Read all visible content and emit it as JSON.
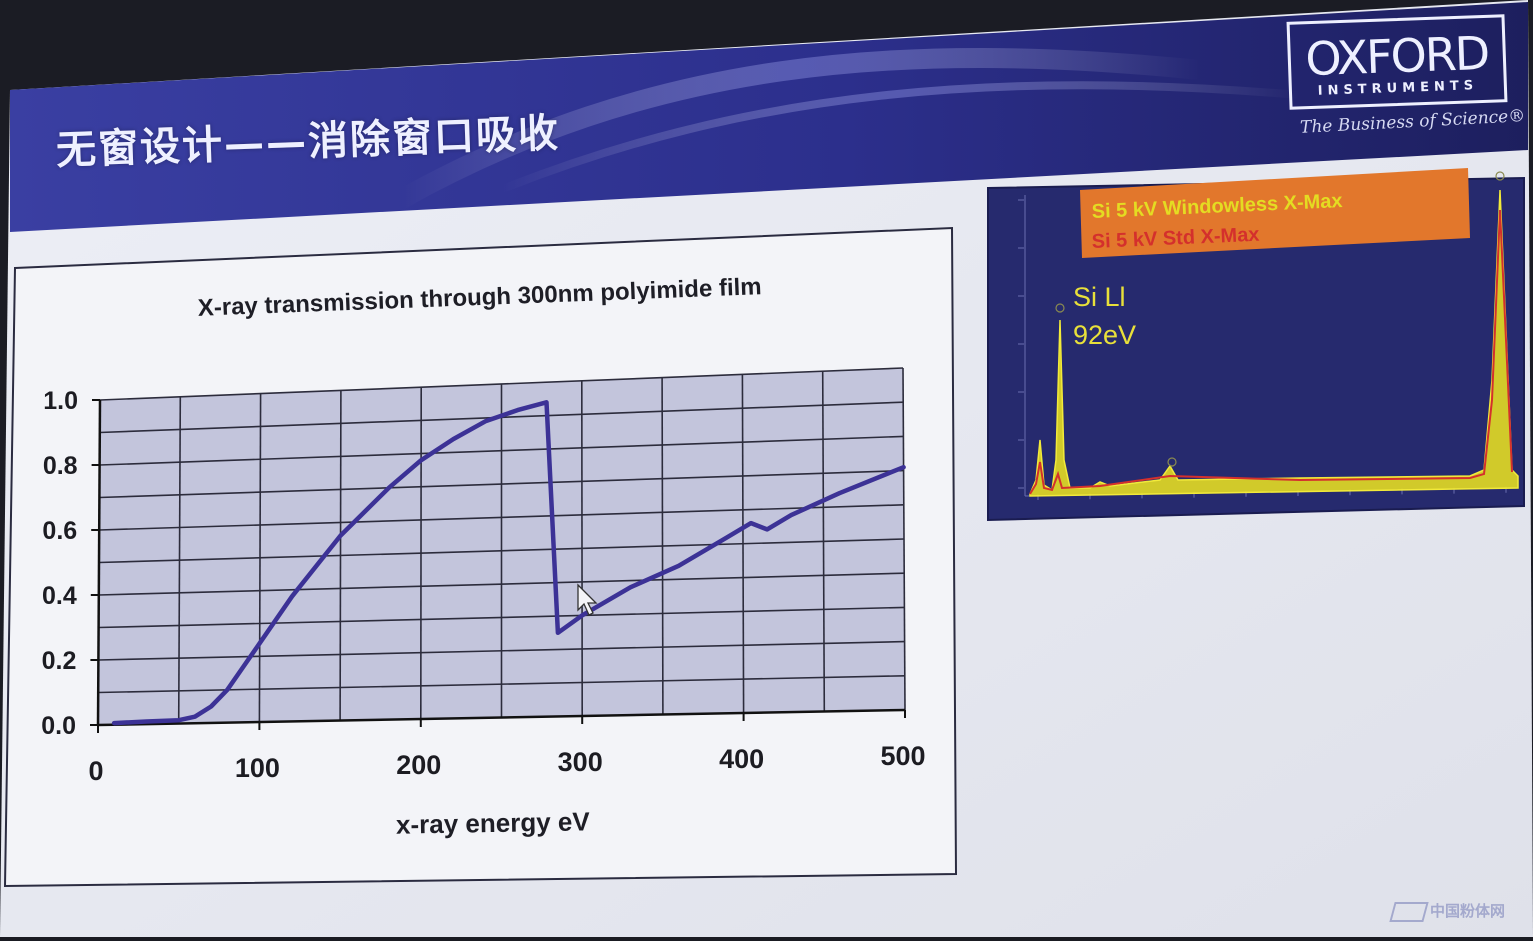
{
  "slide": {
    "title": "无窗设计——消除窗口吸收",
    "logo_word": "OXFORD",
    "logo_sub": "INSTRUMENTS",
    "tagline": "The Business of Science®",
    "watermark": "中国粉体网",
    "colors": {
      "banner": "#2b2f8f",
      "screen": "#e8eaf2",
      "plot_bg": "#c3c5dc",
      "line": "#3c3296",
      "spectrum_bg": "#262a6e",
      "spectrum_fill": "#e4dc22",
      "legend_bg": "#e2772c"
    }
  },
  "chart_data": [
    {
      "type": "line",
      "title": "X-ray transmission through 300nm polyimide film",
      "xlabel": "x-ray energy eV",
      "ylabel": "",
      "xlim": [
        0,
        500
      ],
      "ylim": [
        0,
        1.0
      ],
      "x_ticks": [
        "0",
        "100",
        "200",
        "300",
        "400",
        "500"
      ],
      "y_ticks": [
        "0.0",
        "0.2",
        "0.4",
        "0.6",
        "0.8",
        "1.0"
      ],
      "grid": true,
      "series": [
        {
          "name": "",
          "x": [
            10,
            30,
            50,
            60,
            70,
            80,
            90,
            100,
            120,
            150,
            180,
            200,
            220,
            240,
            260,
            278,
            285,
            300,
            330,
            360,
            390,
            405,
            415,
            430,
            460,
            500
          ],
          "y": [
            0.005,
            0.008,
            0.01,
            0.02,
            0.05,
            0.1,
            0.17,
            0.24,
            0.38,
            0.56,
            0.7,
            0.78,
            0.84,
            0.89,
            0.92,
            0.94,
            0.25,
            0.3,
            0.38,
            0.44,
            0.52,
            0.56,
            0.54,
            0.58,
            0.64,
            0.71
          ]
        }
      ]
    },
    {
      "type": "area",
      "title": "",
      "legend": [
        "Si 5 kV Windowless X-Max",
        "Si 5 kV Std X-Max"
      ],
      "legend_colors": [
        "#e4dc22",
        "#d4302c"
      ],
      "legend_position": "top",
      "annotation": [
        "Si Ll",
        "92eV"
      ],
      "note": "EDS spectrum with Si Ll peak at low energy and Si K peak at right"
    }
  ]
}
